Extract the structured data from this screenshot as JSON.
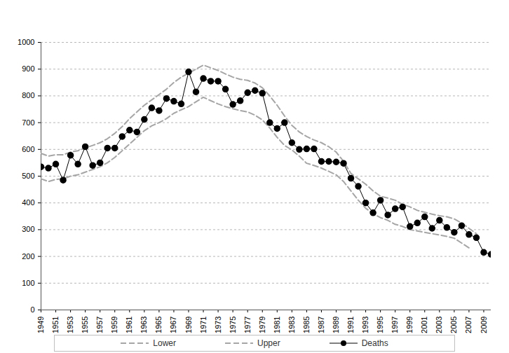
{
  "chart_data": {
    "type": "line",
    "x": [
      1949,
      1950,
      1951,
      1952,
      1953,
      1954,
      1955,
      1956,
      1957,
      1958,
      1959,
      1960,
      1961,
      1962,
      1963,
      1964,
      1965,
      1966,
      1967,
      1968,
      1969,
      1970,
      1971,
      1972,
      1973,
      1974,
      1975,
      1976,
      1977,
      1978,
      1979,
      1980,
      1981,
      1982,
      1983,
      1984,
      1985,
      1986,
      1987,
      1988,
      1989,
      1990,
      1991,
      1992,
      1993,
      1994,
      1995,
      1996,
      1997,
      1998,
      1999,
      2000,
      2001,
      2002,
      2003,
      2004,
      2005,
      2006,
      2007,
      2008,
      2009,
      2010
    ],
    "series": [
      {
        "name": "Lower",
        "color": "#a6a6a6",
        "line_style": "dashed",
        "marker": "none",
        "values": [
          490,
          480,
          488,
          490,
          500,
          505,
          515,
          525,
          535,
          550,
          570,
          595,
          620,
          645,
          670,
          688,
          700,
          715,
          735,
          748,
          760,
          778,
          795,
          782,
          770,
          760,
          752,
          745,
          740,
          728,
          710,
          680,
          645,
          615,
          598,
          575,
          548,
          540,
          530,
          518,
          505,
          480,
          445,
          410,
          380,
          360,
          345,
          335,
          320,
          312,
          300,
          295,
          290,
          285,
          280,
          275,
          268,
          250,
          232,
          null,
          null,
          null
        ]
      },
      {
        "name": "Upper",
        "color": "#a6a6a6",
        "line_style": "dashed",
        "marker": "none",
        "values": [
          585,
          575,
          580,
          580,
          590,
          595,
          605,
          615,
          625,
          640,
          660,
          685,
          715,
          740,
          765,
          785,
          805,
          825,
          850,
          870,
          885,
          900,
          915,
          905,
          895,
          882,
          870,
          862,
          858,
          848,
          830,
          800,
          765,
          725,
          690,
          665,
          648,
          635,
          625,
          610,
          590,
          555,
          510,
          490,
          470,
          445,
          425,
          418,
          410,
          395,
          385,
          372,
          365,
          358,
          352,
          348,
          340,
          325,
          305,
          285,
          null,
          null
        ]
      },
      {
        "name": "Deaths",
        "color": "#000000",
        "line_style": "solid",
        "marker": "circle",
        "values": [
          535,
          530,
          545,
          485,
          578,
          545,
          610,
          540,
          550,
          605,
          605,
          648,
          672,
          665,
          712,
          755,
          745,
          790,
          780,
          770,
          890,
          815,
          865,
          855,
          855,
          825,
          768,
          782,
          812,
          820,
          810,
          700,
          678,
          700,
          625,
          600,
          602,
          602,
          555,
          555,
          553,
          548,
          492,
          462,
          400,
          363,
          410,
          355,
          378,
          385,
          312,
          325,
          348,
          305,
          335,
          308,
          290,
          315,
          282,
          270,
          215,
          208
        ]
      }
    ],
    "xlim": [
      1949,
      2010
    ],
    "xticks": [
      1949,
      1951,
      1953,
      1955,
      1957,
      1959,
      1961,
      1963,
      1965,
      1967,
      1969,
      1971,
      1973,
      1975,
      1977,
      1979,
      1981,
      1983,
      1985,
      1987,
      1989,
      1991,
      1993,
      1995,
      1997,
      1999,
      2001,
      2003,
      2005,
      2007,
      2009
    ],
    "ylim": [
      0,
      1000
    ],
    "yticks": [
      0,
      100,
      200,
      300,
      400,
      500,
      600,
      700,
      800,
      900,
      1000
    ],
    "grid": true,
    "legend": "bottom"
  }
}
